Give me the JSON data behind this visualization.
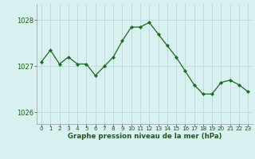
{
  "x": [
    0,
    1,
    2,
    3,
    4,
    5,
    6,
    7,
    8,
    9,
    10,
    11,
    12,
    13,
    14,
    15,
    16,
    17,
    18,
    19,
    20,
    21,
    22,
    23
  ],
  "y": [
    1027.1,
    1027.35,
    1027.05,
    1027.2,
    1027.05,
    1027.05,
    1026.8,
    1027.0,
    1027.2,
    1027.55,
    1027.85,
    1027.85,
    1027.95,
    1027.7,
    1027.45,
    1027.2,
    1026.9,
    1026.6,
    1026.4,
    1026.4,
    1026.65,
    1026.7,
    1026.6,
    1026.45
  ],
  "ylim": [
    1025.75,
    1028.35
  ],
  "yticks": [
    1026,
    1027,
    1028
  ],
  "xticks": [
    0,
    1,
    2,
    3,
    4,
    5,
    6,
    7,
    8,
    9,
    10,
    11,
    12,
    13,
    14,
    15,
    16,
    17,
    18,
    19,
    20,
    21,
    22,
    23
  ],
  "line_color": "#1a6b1a",
  "marker_color": "#1a6b1a",
  "bg_color": "#d8f0f0",
  "grid_color": "#b8dada",
  "xlabel": "Graphe pression niveau de la mer (hPa)",
  "xlabel_color": "#1a5c1a",
  "tick_color": "#1a5c1a",
  "fig_bg": "#d8f0f0"
}
